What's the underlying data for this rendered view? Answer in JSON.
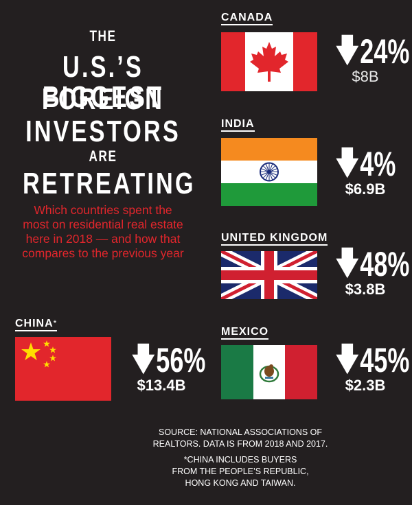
{
  "title": {
    "line1": "THE",
    "line2": "U.S.’S BIGGEST",
    "line3": "FOREIGN",
    "line4": "INVESTORS",
    "line5": "ARE",
    "line6": "RETREATING"
  },
  "subtitle": "Which countries spent the most on residential real estate here in 2018 — and how that compares to the previous year",
  "colors": {
    "background": "#231f20",
    "accent_red": "#e2262c",
    "text": "#ffffff"
  },
  "chart_data": {
    "type": "table",
    "columns": [
      "country",
      "change_pct",
      "direction",
      "spent_2018_usd_billions"
    ],
    "rows": [
      {
        "country": "CANADA",
        "change_label": "24%",
        "change_pct": -24,
        "amount_label": "$8B",
        "amount": 8.0,
        "flag_icon": "canada-flag-icon"
      },
      {
        "country": "INDIA",
        "change_label": "4%",
        "change_pct": -4,
        "amount_label": "$6.9B",
        "amount": 6.9,
        "flag_icon": "india-flag-icon"
      },
      {
        "country": "UNITED KINGDOM",
        "change_label": "48%",
        "change_pct": -48,
        "amount_label": "$3.8B",
        "amount": 3.8,
        "flag_icon": "uk-flag-icon"
      },
      {
        "country": "CHINA",
        "country_marker": "*",
        "change_label": "56%",
        "change_pct": -56,
        "amount_label": "$13.4B",
        "amount": 13.4,
        "flag_icon": "china-flag-icon"
      },
      {
        "country": "MEXICO",
        "change_label": "45%",
        "change_pct": -45,
        "amount_label": "$2.3B",
        "amount": 2.3,
        "flag_icon": "mexico-flag-icon"
      }
    ]
  },
  "arrow_glyph": "🡇",
  "footer": {
    "source_line1": "SOURCE: NATIONAL ASSOCIATIONS OF",
    "source_line2": "REALTORS. DATA IS FROM 2018 AND 2017.",
    "note_line1": "*CHINA INCLUDES BUYERS",
    "note_line2": "FROM THE PEOPLE’S REPUBLIC,",
    "note_line3": "HONG KONG AND TAIWAN."
  }
}
